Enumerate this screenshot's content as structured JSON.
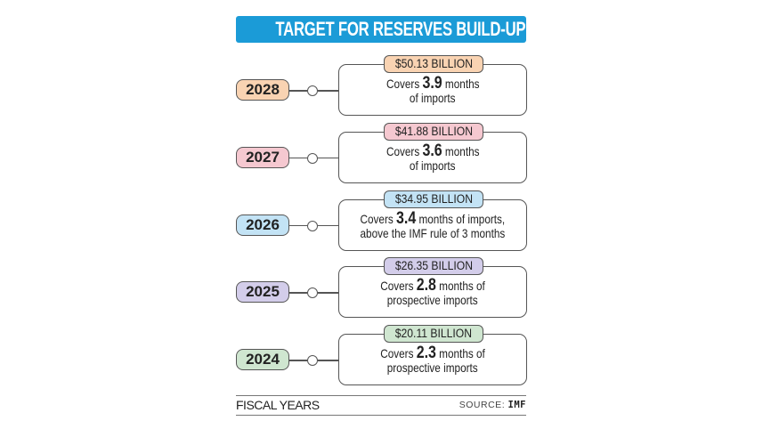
{
  "title": "TARGET FOR RESERVES BUILD-UP",
  "items": [
    {
      "year": "2028",
      "amount": "$50.13 BILLION",
      "pre": "Covers ",
      "value": "3.9",
      "post": " months",
      "line2": "of imports",
      "color": "#f9d3b2"
    },
    {
      "year": "2027",
      "amount": "$41.88 BILLION",
      "pre": "Covers ",
      "value": "3.6",
      "post": " months",
      "line2": "of imports",
      "color": "#f5c8d0"
    },
    {
      "year": "2026",
      "amount": "$34.95 BILLION",
      "pre": "Covers ",
      "value": "3.4",
      "post": " months of imports,",
      "line2": "above the IMF rule of 3 months",
      "color": "#c3e3f5"
    },
    {
      "year": "2025",
      "amount": "$26.35 BILLION",
      "pre": "Covers ",
      "value": "2.8",
      "post": " months of",
      "line2": "prospective imports",
      "color": "#d3cdea"
    },
    {
      "year": "2024",
      "amount": "$20.11 BILLION",
      "pre": "Covers ",
      "value": "2.3",
      "post": " months of",
      "line2": "prospective imports",
      "color": "#cfe6d0"
    }
  ],
  "footer": {
    "label": "FISCAL YEARS",
    "source_label": "SOURCE: ",
    "source": "IMF"
  }
}
